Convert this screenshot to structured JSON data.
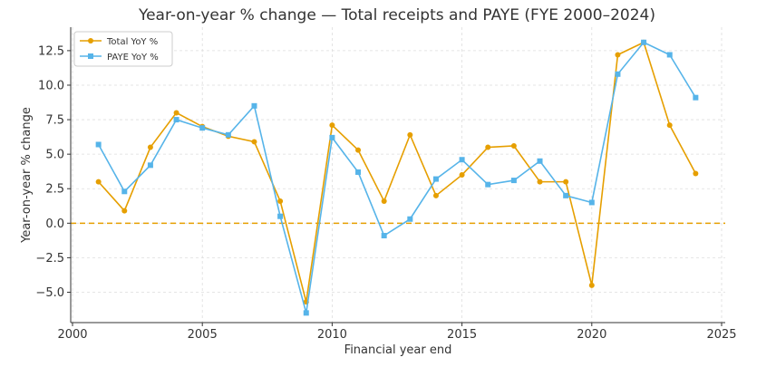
{
  "chart_data": {
    "type": "line",
    "title": "Year-on-year % change — Total receipts and PAYE (FYE 2000–2024)",
    "xlabel": "Financial year end",
    "ylabel": "Year-on-year % change",
    "xlim": [
      2000,
      2025
    ],
    "ylim": [
      -7.2,
      14.2
    ],
    "xticks": [
      2000,
      2005,
      2010,
      2015,
      2020,
      2025
    ],
    "yticks": [
      -5.0,
      -2.5,
      0.0,
      2.5,
      5.0,
      7.5,
      10.0,
      12.5
    ],
    "xtick_labels": [
      "2000",
      "2005",
      "2010",
      "2015",
      "2020",
      "2025"
    ],
    "ytick_labels": [
      "−5.0",
      "−2.5",
      "0.0",
      "2.5",
      "5.0",
      "7.5",
      "10.0",
      "12.5"
    ],
    "grid": true,
    "reference_line": {
      "y": 0,
      "style": "dashed",
      "color": "#E69F00"
    },
    "legend": {
      "placement": "top-left"
    },
    "x": [
      2001,
      2002,
      2003,
      2004,
      2005,
      2006,
      2007,
      2008,
      2009,
      2010,
      2011,
      2012,
      2013,
      2014,
      2015,
      2016,
      2017,
      2018,
      2019,
      2020,
      2021,
      2022,
      2023,
      2024
    ],
    "series": [
      {
        "name": "Total YoY %",
        "color": "#E69F00",
        "marker": "circle",
        "values": [
          3.0,
          0.9,
          5.5,
          8.0,
          7.0,
          6.3,
          5.9,
          1.6,
          -5.7,
          7.1,
          5.3,
          1.6,
          6.4,
          2.0,
          3.5,
          5.5,
          5.6,
          3.0,
          3.0,
          -4.5,
          12.2,
          13.1,
          7.1,
          3.6
        ]
      },
      {
        "name": "PAYE YoY %",
        "color": "#56B4E9",
        "marker": "square",
        "values": [
          5.7,
          2.3,
          4.2,
          7.5,
          6.9,
          6.4,
          8.5,
          0.5,
          -6.5,
          6.2,
          3.7,
          -0.9,
          0.3,
          3.2,
          4.6,
          2.8,
          3.1,
          4.5,
          2.0,
          1.5,
          10.8,
          13.1,
          12.2,
          9.1
        ]
      }
    ]
  }
}
